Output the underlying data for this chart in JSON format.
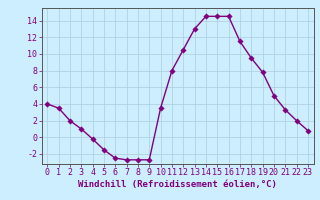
{
  "x": [
    0,
    1,
    2,
    3,
    4,
    5,
    6,
    7,
    8,
    9,
    10,
    11,
    12,
    13,
    14,
    15,
    16,
    17,
    18,
    19,
    20,
    21,
    22,
    23
  ],
  "y": [
    4.0,
    3.5,
    2.0,
    1.0,
    -0.2,
    -1.5,
    -2.5,
    -2.7,
    -2.7,
    -2.7,
    3.5,
    8.0,
    10.5,
    13.0,
    14.5,
    14.5,
    14.5,
    11.5,
    9.5,
    7.8,
    5.0,
    3.3,
    2.0,
    0.8
  ],
  "line_color": "#800080",
  "marker_color": "#800080",
  "bg_color": "#cceeff",
  "grid_color": "#aaccdd",
  "spine_color": "#555555",
  "axis_color": "#800080",
  "xlabel": "Windchill (Refroidissement éolien,°C)",
  "xlim": [
    -0.5,
    23.5
  ],
  "ylim": [
    -3.2,
    15.5
  ],
  "yticks": [
    -2,
    0,
    2,
    4,
    6,
    8,
    10,
    12,
    14
  ],
  "xticks": [
    0,
    1,
    2,
    3,
    4,
    5,
    6,
    7,
    8,
    9,
    10,
    11,
    12,
    13,
    14,
    15,
    16,
    17,
    18,
    19,
    20,
    21,
    22,
    23
  ],
  "marker_size": 2.8,
  "line_width": 1.0,
  "xlabel_fontsize": 6.5,
  "tick_fontsize": 6.0
}
